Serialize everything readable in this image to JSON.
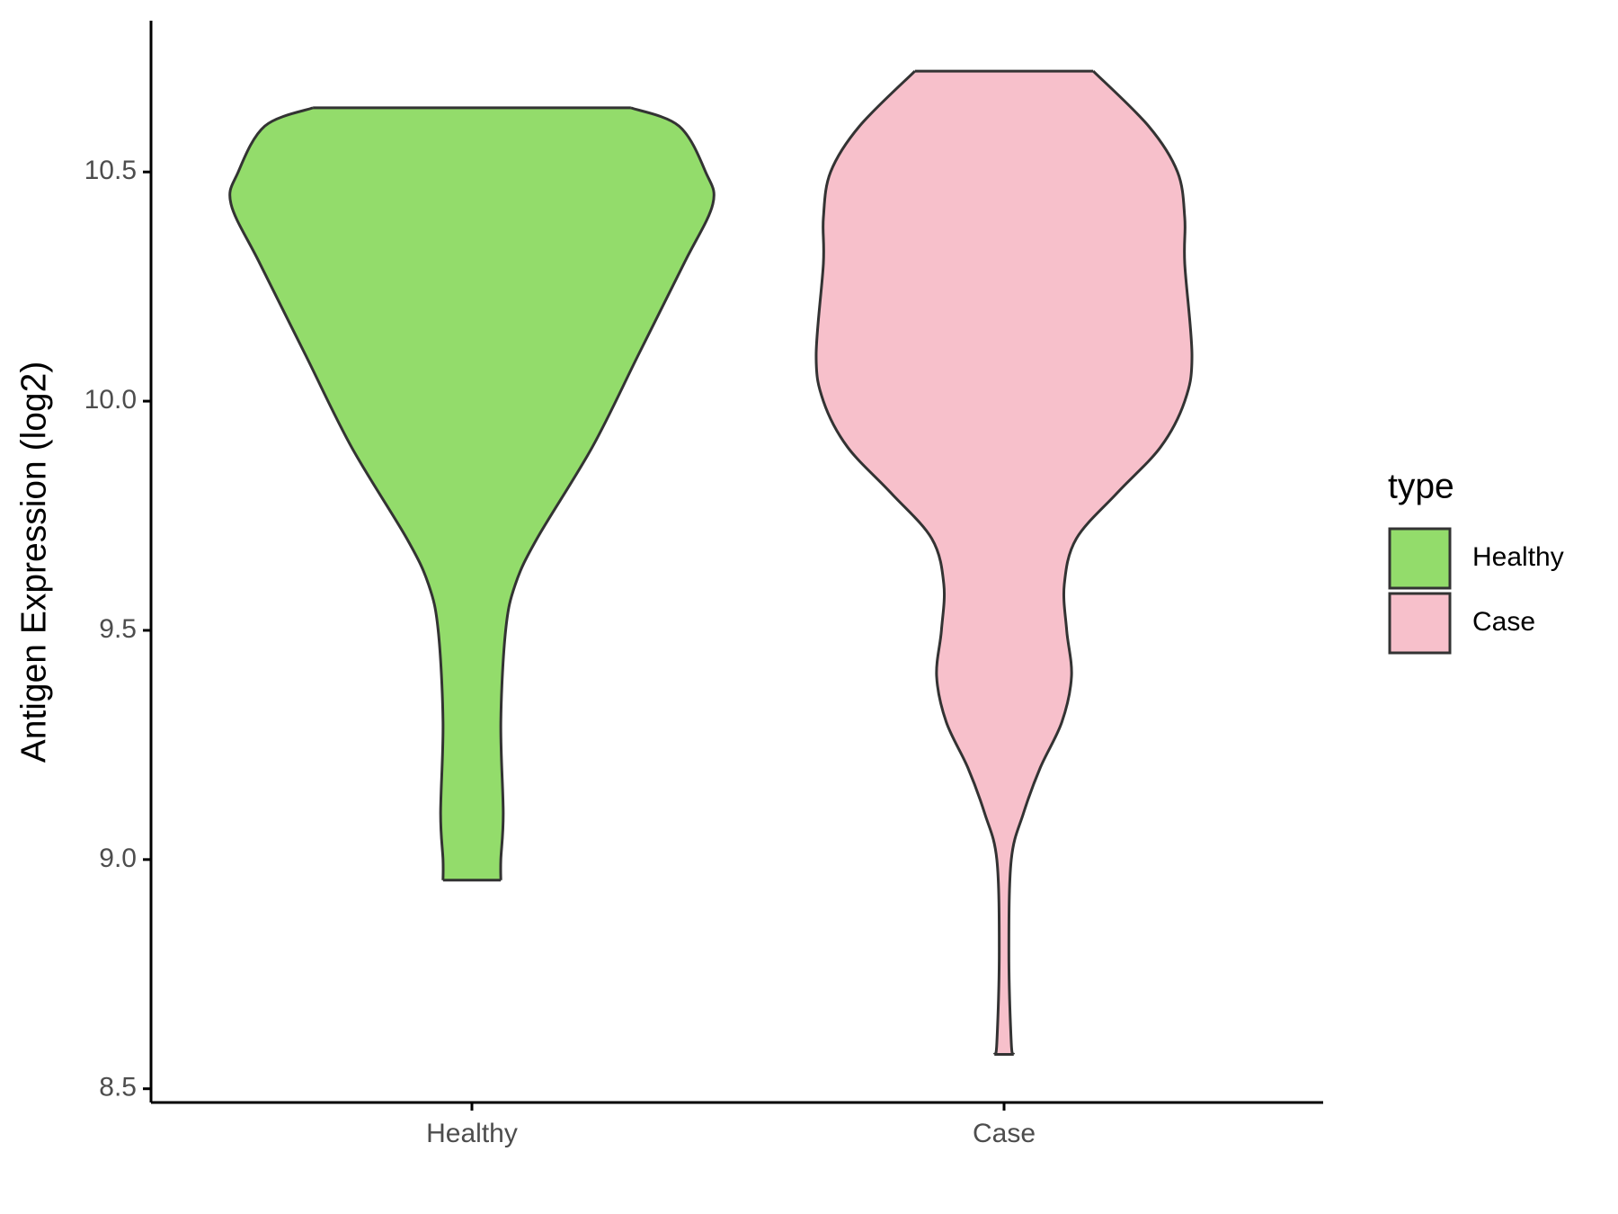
{
  "chart_data": {
    "type": "violin",
    "y_label": "Antigen Expression (log2)",
    "legend_title": "type",
    "categories": [
      "Healthy",
      "Case"
    ],
    "ylim": [
      8.47,
      10.83
    ],
    "yticks": [
      {
        "value": 8.5,
        "label": "8.5"
      },
      {
        "value": 9,
        "label": "9.0"
      },
      9.5,
      {
        "value": 10,
        "label": "10.0"
      },
      10.5
    ],
    "series": [
      {
        "name": "Healthy",
        "color": "#93dc6b",
        "y": [
          10.64,
          10.6,
          10.5,
          10.43,
          10.3,
          10.1,
          9.9,
          9.7,
          9.6,
          9.5,
          9.3,
          9.1,
          9.0,
          8.955
        ],
        "width": [
          0.66,
          0.86,
          0.97,
          1.0,
          0.88,
          0.69,
          0.5,
          0.27,
          0.18,
          0.14,
          0.12,
          0.13,
          0.12,
          0.12
        ]
      },
      {
        "name": "Case",
        "color": "#f7c0cb",
        "y": [
          10.72,
          10.6,
          10.5,
          10.4,
          10.3,
          10.1,
          10.0,
          9.9,
          9.8,
          9.7,
          9.6,
          9.5,
          9.4,
          9.3,
          9.2,
          9.1,
          9.0,
          8.8,
          8.6,
          8.575
        ],
        "width": [
          0.37,
          0.6,
          0.72,
          0.75,
          0.75,
          0.78,
          0.75,
          0.65,
          0.47,
          0.3,
          0.25,
          0.26,
          0.28,
          0.24,
          0.15,
          0.08,
          0.03,
          0.02,
          0.03,
          0.04
        ]
      }
    ]
  }
}
